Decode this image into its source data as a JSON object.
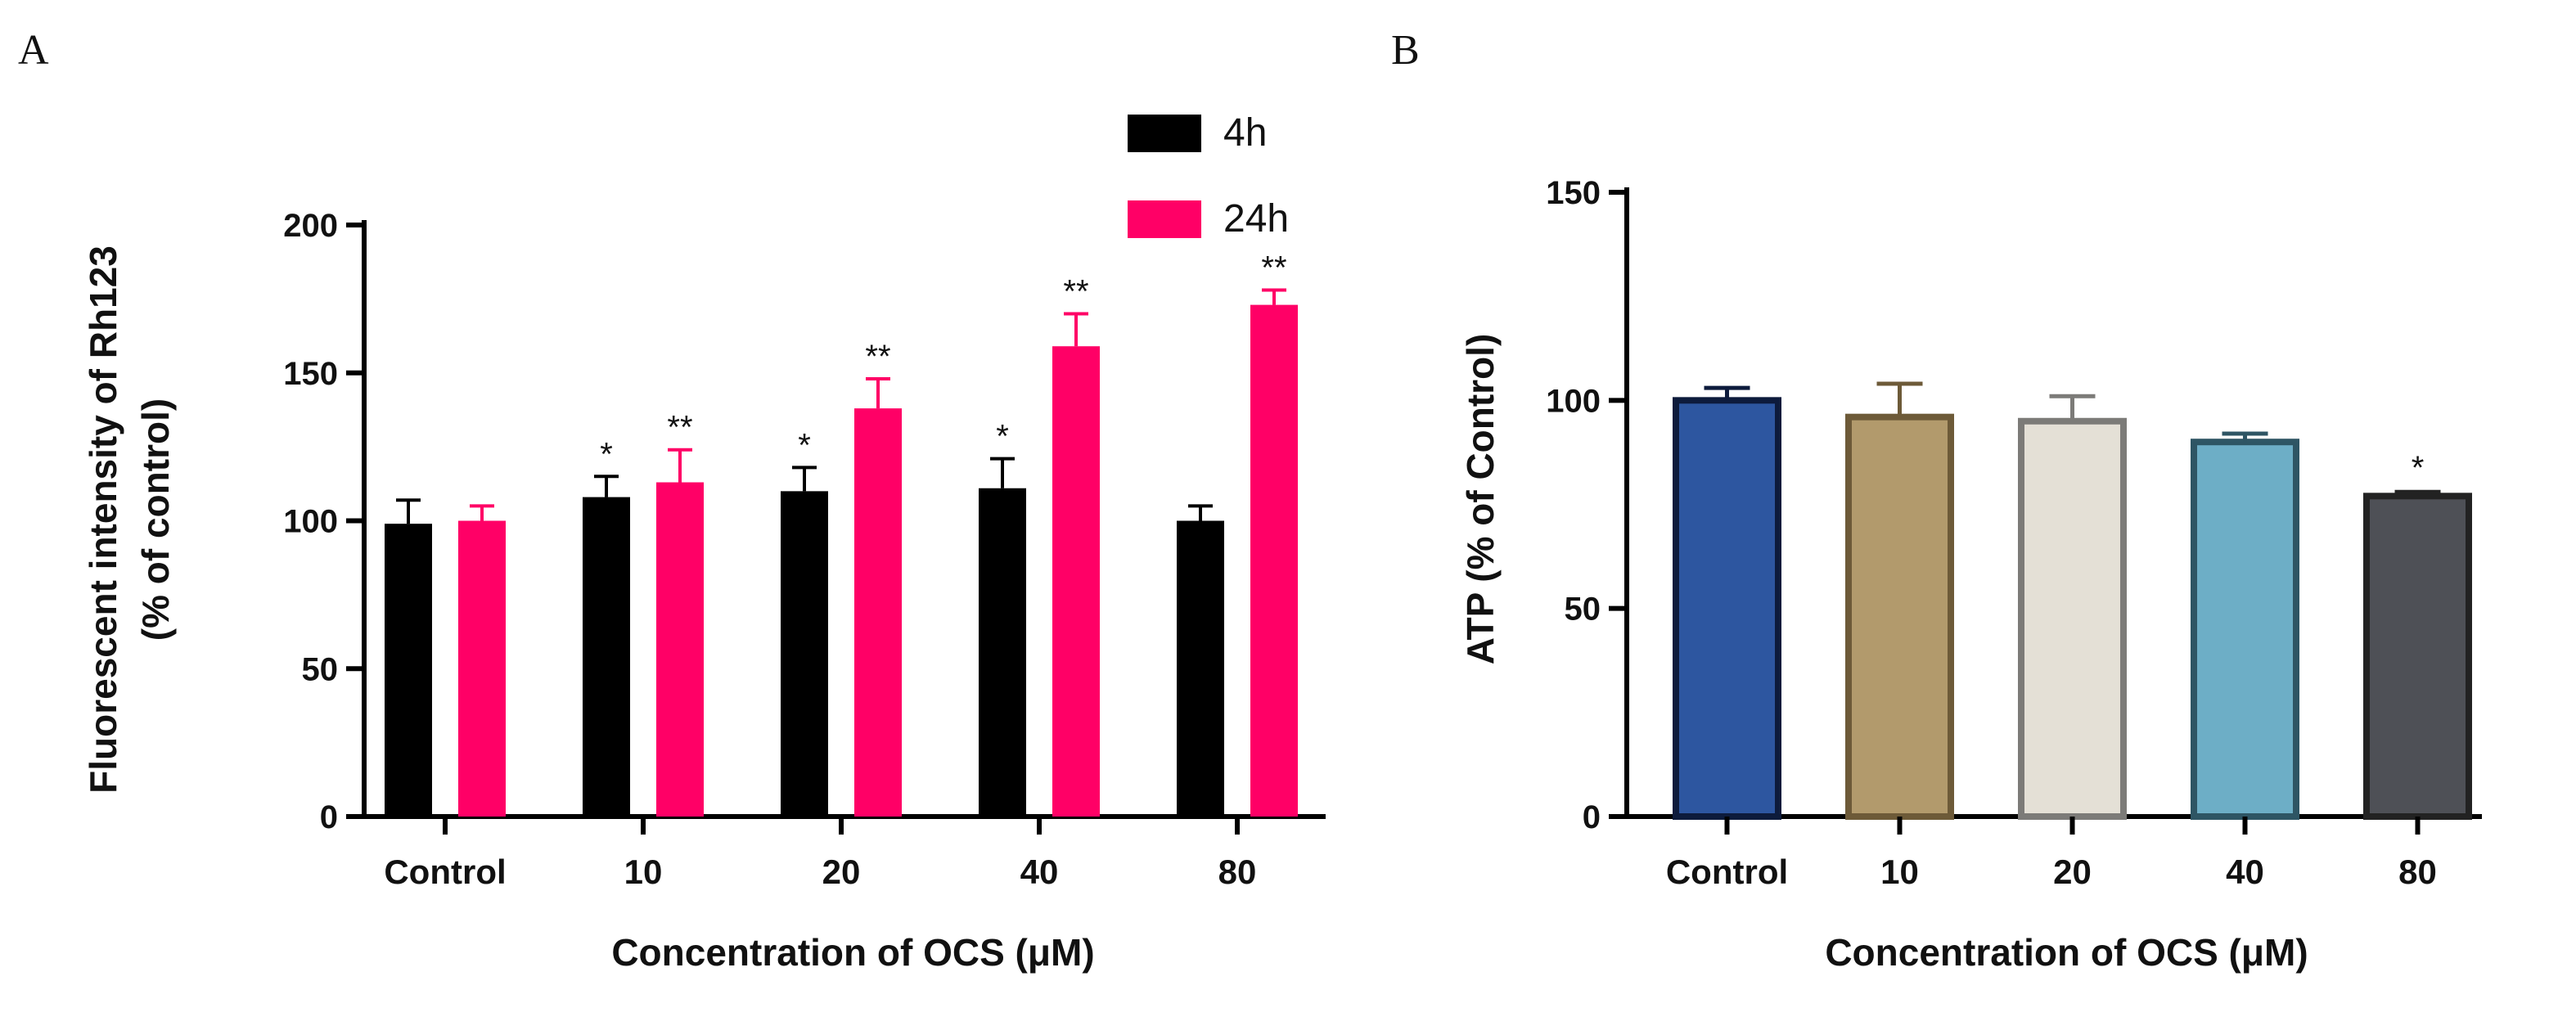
{
  "figure": {
    "panels": [
      "A",
      "B"
    ]
  },
  "chart_data": [
    {
      "type": "bar",
      "panel": "A",
      "title": "",
      "xlabel": "Concentration of OCS (μM)",
      "ylabel_line1": "Fluorescent intensity of Rh123",
      "ylabel_line2": "(% of control)",
      "ylim": [
        0,
        200
      ],
      "yticks": [
        0,
        50,
        100,
        150,
        200
      ],
      "categories": [
        "Control",
        "10",
        "20",
        "40",
        "80"
      ],
      "legend_position": "top-right",
      "series": [
        {
          "name": "4h",
          "color": "#000000",
          "values": [
            99,
            108,
            110,
            111,
            100
          ],
          "errors": [
            8,
            7,
            8,
            10,
            5
          ],
          "significance": [
            "",
            "*",
            "*",
            "*",
            ""
          ]
        },
        {
          "name": "24h",
          "color": "#FF0066",
          "values": [
            100,
            113,
            138,
            159,
            173
          ],
          "errors": [
            5,
            11,
            10,
            11,
            5
          ],
          "significance": [
            "",
            "**",
            "**",
            "**",
            "**"
          ]
        }
      ]
    },
    {
      "type": "bar",
      "panel": "B",
      "title": "",
      "xlabel": "Concentration of OCS (μM)",
      "ylabel": "ATP (% of Control)",
      "ylim": [
        0,
        150
      ],
      "yticks": [
        0,
        50,
        100,
        150
      ],
      "categories": [
        "Control",
        "10",
        "20",
        "40",
        "80"
      ],
      "values": [
        100,
        96,
        95,
        90,
        77
      ],
      "errors": [
        3,
        8,
        6,
        2,
        1
      ],
      "significance": [
        "",
        "",
        "",
        "",
        "*"
      ],
      "fill_colors": [
        "#2D56A0",
        "#B29A6C",
        "#E4E0D6",
        "#6DAEC6",
        "#4E5056"
      ],
      "edge_colors": [
        "#0D1B3C",
        "#6D5A38",
        "#7C7B78",
        "#2E5564",
        "#222222"
      ]
    }
  ]
}
